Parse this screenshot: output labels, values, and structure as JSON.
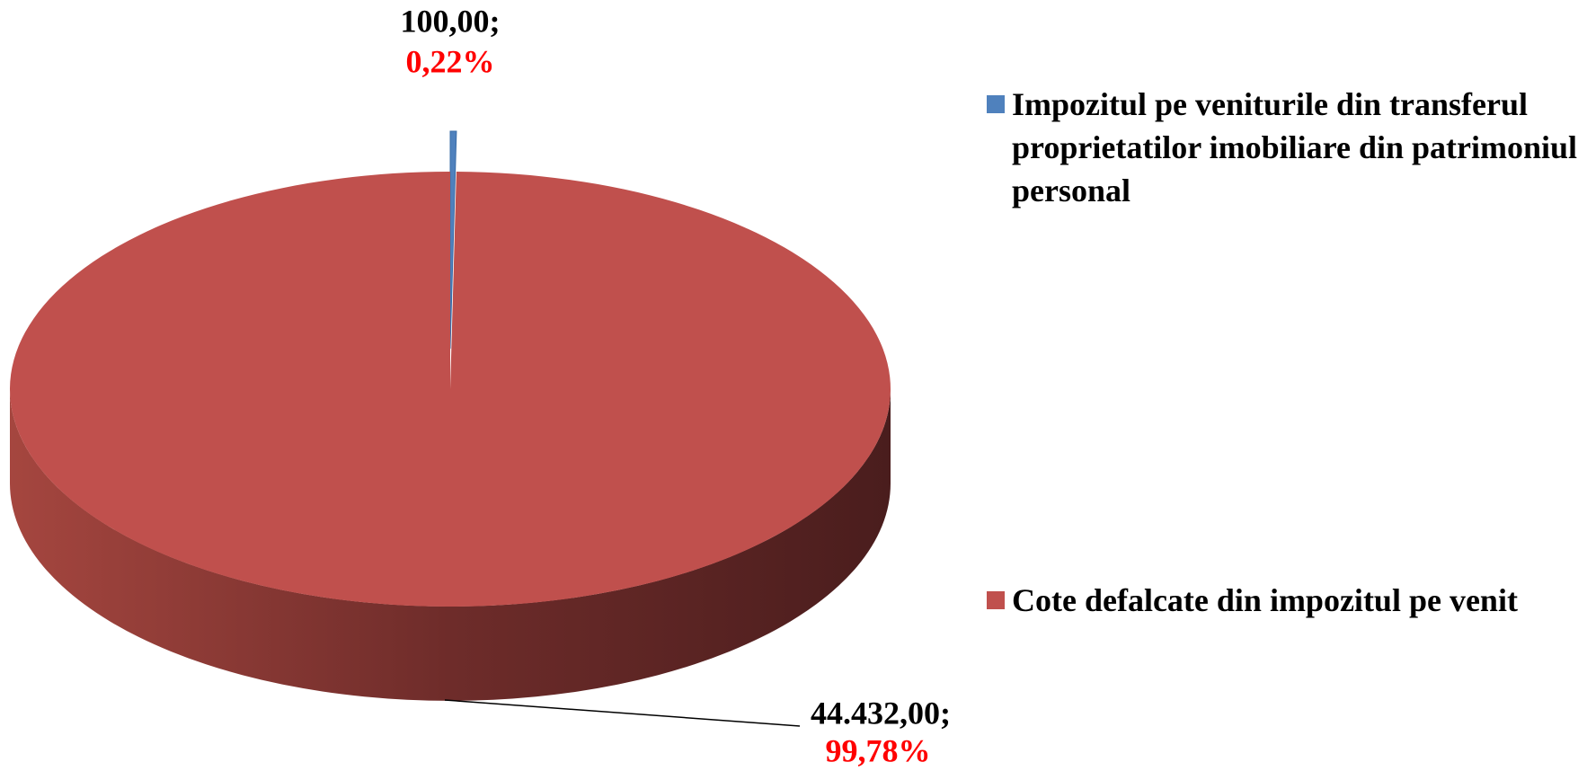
{
  "chart_data": {
    "type": "pie",
    "categories": [
      "Impozitul pe veniturile din transferul proprietatilor imobiliare din patrimoniul personal",
      "Cote defalcate din impozitul pe venit"
    ],
    "values": [
      100,
      44432
    ],
    "value_labels": [
      "100,00;",
      "44.432,00;"
    ],
    "percents": [
      0.22,
      99.78
    ],
    "percent_labels": [
      "0,22%",
      "99,78%"
    ],
    "colors": [
      "#4f81bd",
      "#c0504d"
    ],
    "legend": "right"
  }
}
